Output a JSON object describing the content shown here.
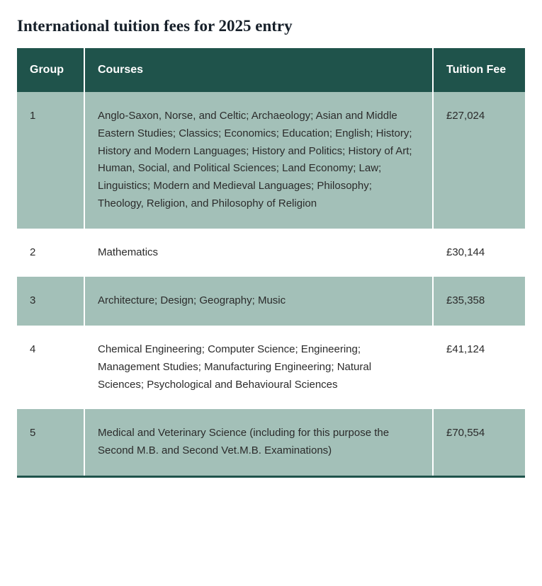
{
  "title": "International tuition fees for 2025 entry",
  "table": {
    "columns": {
      "group": "Group",
      "courses": "Courses",
      "fee": "Tuition Fee"
    },
    "colors": {
      "header_bg": "#1f534b",
      "header_text": "#ffffff",
      "row_odd_bg": "#a3c0b8",
      "row_even_bg": "#ffffff",
      "text": "#2b2b2b",
      "bottom_rule": "#1f534b"
    },
    "column_widths": {
      "group": 95,
      "fee": 130
    },
    "rows": [
      {
        "group": "1",
        "courses": "Anglo-Saxon, Norse, and Celtic; Archaeology; Asian and Middle Eastern Studies; Classics; Economics; Education; English; History; History and Modern Languages; History and Politics; History of Art; Human, Social, and Political Sciences; Land Economy; Law; Linguistics; Modern and Medieval Languages; Philosophy; Theology, Religion, and Philosophy of Religion",
        "fee": "£27,024"
      },
      {
        "group": "2",
        "courses": "Mathematics",
        "fee": "£30,144"
      },
      {
        "group": "3",
        "courses": "Architecture; Design; Geography; Music",
        "fee": "£35,358"
      },
      {
        "group": "4",
        "courses": "Chemical Engineering; Computer Science; Engineering; Management Studies; Manufacturing Engineering; Natural Sciences; Psychological and Behavioural Sciences",
        "fee": "£41,124"
      },
      {
        "group": "5",
        "courses": "Medical and Veterinary Science (including for this purpose the Second M.B. and Second Vet.M.B. Examinations)",
        "fee": "£70,554"
      }
    ]
  }
}
